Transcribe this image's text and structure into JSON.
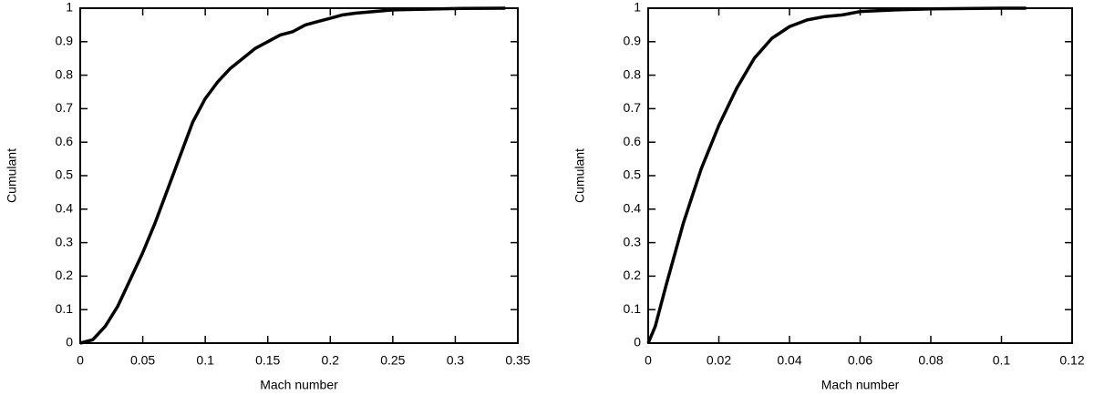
{
  "chart_data": [
    {
      "type": "line",
      "x_label": "Mach number",
      "y_label": "Cumulant",
      "xlim": [
        0,
        0.35
      ],
      "xticks": [
        0,
        0.05,
        0.1,
        0.15,
        0.2,
        0.25,
        0.3,
        0.35
      ],
      "ylim": [
        0,
        1
      ],
      "yticks": [
        0,
        0.1,
        0.2,
        0.3,
        0.4,
        0.5,
        0.6,
        0.7,
        0.8,
        0.9,
        1
      ],
      "series": [
        {
          "color": "#000000",
          "x": [
            0,
            0.01,
            0.02,
            0.03,
            0.04,
            0.05,
            0.06,
            0.07,
            0.08,
            0.09,
            0.1,
            0.11,
            0.12,
            0.13,
            0.14,
            0.15,
            0.16,
            0.17,
            0.18,
            0.19,
            0.2,
            0.21,
            0.22,
            0.25,
            0.3,
            0.34
          ],
          "values": [
            0,
            0.01,
            0.05,
            0.11,
            0.19,
            0.27,
            0.36,
            0.46,
            0.56,
            0.66,
            0.73,
            0.78,
            0.82,
            0.85,
            0.88,
            0.9,
            0.92,
            0.93,
            0.95,
            0.96,
            0.97,
            0.98,
            0.985,
            0.995,
            0.999,
            1
          ]
        }
      ]
    },
    {
      "type": "line",
      "x_label": "Mach number",
      "y_label": "Cumulant",
      "xlim": [
        0,
        0.12
      ],
      "xticks": [
        0,
        0.02,
        0.04,
        0.06,
        0.08,
        0.1,
        0.12
      ],
      "ylim": [
        0,
        1
      ],
      "yticks": [
        0,
        0.1,
        0.2,
        0.3,
        0.4,
        0.5,
        0.6,
        0.7,
        0.8,
        0.9,
        1
      ],
      "series": [
        {
          "color": "#000000",
          "x": [
            0,
            0.002,
            0.005,
            0.01,
            0.015,
            0.02,
            0.025,
            0.03,
            0.035,
            0.04,
            0.045,
            0.05,
            0.055,
            0.06,
            0.07,
            0.08,
            0.09,
            0.1,
            0.107
          ],
          "values": [
            0,
            0.05,
            0.17,
            0.36,
            0.52,
            0.65,
            0.76,
            0.85,
            0.91,
            0.945,
            0.965,
            0.975,
            0.98,
            0.99,
            0.995,
            0.998,
            0.999,
            1,
            1
          ]
        }
      ]
    }
  ]
}
